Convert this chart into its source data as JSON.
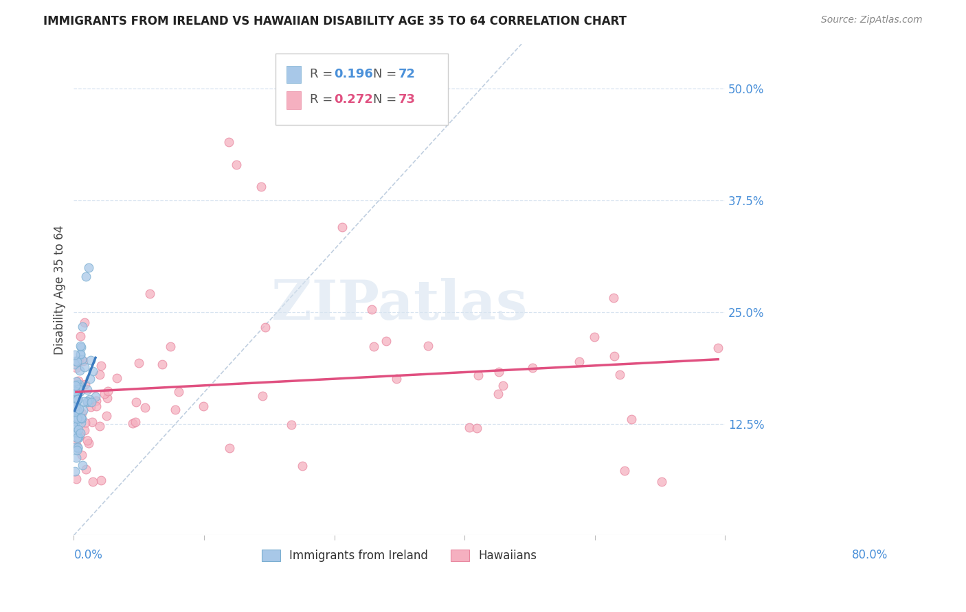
{
  "title": "IMMIGRANTS FROM IRELAND VS HAWAIIAN DISABILITY AGE 35 TO 64 CORRELATION CHART",
  "source": "Source: ZipAtlas.com",
  "ylabel": "Disability Age 35 to 64",
  "xlim": [
    0.0,
    0.8
  ],
  "ylim": [
    0.0,
    0.55
  ],
  "yticks": [
    0.125,
    0.25,
    0.375,
    0.5
  ],
  "ytick_labels": [
    "12.5%",
    "25.0%",
    "37.5%",
    "50.0%"
  ],
  "ireland_R": 0.196,
  "ireland_N": 72,
  "hawaiian_R": 0.272,
  "hawaiian_N": 73,
  "ireland_color": "#a8c8e8",
  "ireland_edge_color": "#7aaed0",
  "ireland_line_color": "#3a7abf",
  "hawaiian_color": "#f5b0c0",
  "hawaiian_edge_color": "#e888a0",
  "hawaiian_line_color": "#e05080",
  "diagonal_color": "#c0cfe0",
  "background_color": "#ffffff",
  "grid_color": "#d8e4f0",
  "title_fontsize": 12,
  "watermark_text": "ZIPatlas",
  "watermark_color": "#d8e4f0",
  "legend_R_color": "#4a90d9",
  "legend_N_color": "#e05080"
}
